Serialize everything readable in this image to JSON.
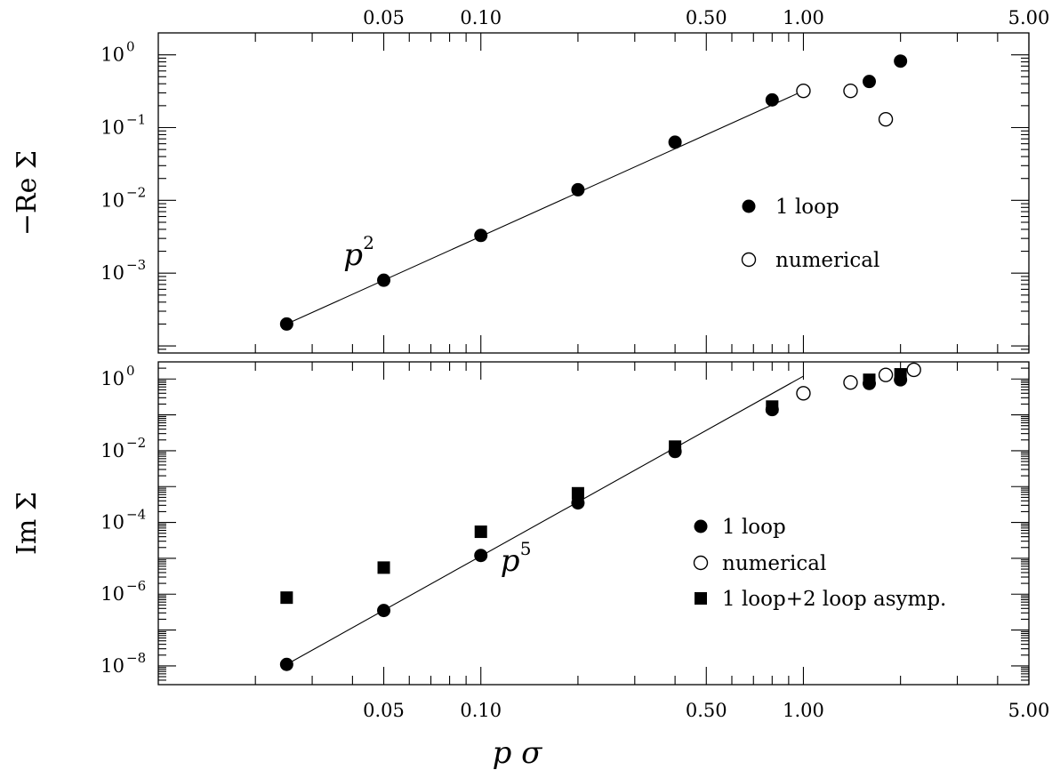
{
  "chart_data": [
    {
      "type": "scatter",
      "panel": "top",
      "xscale": "log",
      "yscale": "log",
      "xlim": [
        0.01,
        5.0
      ],
      "ylim": [
        8e-05,
        2.0
      ],
      "ylabel": "−Re Σ",
      "xlabel": "",
      "x_tick_labels": [
        "0.05",
        "0.10",
        "0.50",
        "1.00",
        "5.00"
      ],
      "y_ticks": [
        {
          "base": "10",
          "exp": "0",
          "value": 1
        },
        {
          "base": "10",
          "exp": "−1",
          "value": 0.1
        },
        {
          "base": "10",
          "exp": "−2",
          "value": 0.01
        },
        {
          "base": "10",
          "exp": "−3",
          "value": 0.001
        }
      ],
      "series": [
        {
          "name": "1 loop",
          "marker": "filled-circle",
          "x": [
            0.025,
            0.05,
            0.1,
            0.2,
            0.4,
            0.8,
            1.6,
            2.0
          ],
          "y": [
            0.0002,
            0.0008,
            0.0033,
            0.014,
            0.063,
            0.24,
            0.43,
            0.82
          ]
        },
        {
          "name": "numerical",
          "marker": "open-circle",
          "x": [
            1.0,
            1.4,
            1.8
          ],
          "y": [
            0.32,
            0.32,
            0.13
          ]
        }
      ],
      "fit_line": {
        "x": [
          0.025,
          1.0
        ],
        "y": [
          0.0002,
          0.32
        ]
      },
      "annotation": {
        "text": "p",
        "sup": "2",
        "x": 0.0375,
        "y": 0.0013
      },
      "legend_position": "middle-right"
    },
    {
      "type": "scatter",
      "panel": "bottom",
      "xscale": "log",
      "yscale": "log",
      "xlim": [
        0.01,
        5.0
      ],
      "ylim": [
        3e-09,
        3.0
      ],
      "ylabel": "Im Σ",
      "xlabel": "p σ",
      "x_tick_labels": [
        "0.05",
        "0.10",
        "0.50",
        "1.00",
        "5.00"
      ],
      "y_ticks": [
        {
          "base": "10",
          "exp": "0",
          "value": 1
        },
        {
          "base": "10",
          "exp": "−2",
          "value": 0.01
        },
        {
          "base": "10",
          "exp": "−4",
          "value": 0.0001
        },
        {
          "base": "10",
          "exp": "−6",
          "value": 1e-06
        },
        {
          "base": "10",
          "exp": "−8",
          "value": 1e-08
        }
      ],
      "series": [
        {
          "name": "1 loop",
          "marker": "filled-circle",
          "x": [
            0.025,
            0.05,
            0.1,
            0.2,
            0.4,
            0.8,
            1.6,
            2.0
          ],
          "y": [
            1.1e-08,
            3.5e-07,
            1.2e-05,
            0.00035,
            0.0095,
            0.14,
            0.75,
            0.95
          ]
        },
        {
          "name": "numerical",
          "marker": "open-circle",
          "x": [
            1.0,
            1.4,
            1.8,
            2.2
          ],
          "y": [
            0.4,
            0.8,
            1.3,
            1.8
          ]
        },
        {
          "name": "1 loop+2 loop asymp.",
          "marker": "filled-square",
          "x": [
            0.025,
            0.05,
            0.1,
            0.2,
            0.4,
            0.8,
            1.6,
            2.0
          ],
          "y": [
            8e-07,
            5.5e-06,
            5.5e-05,
            0.00065,
            0.013,
            0.17,
            0.95,
            1.35
          ]
        }
      ],
      "fit_line": {
        "x": [
          0.025,
          1.0
        ],
        "y": [
          1.1e-08,
          1.2
        ]
      },
      "annotation": {
        "text": "p",
        "sup": "5",
        "x": 0.115,
        "y": 4.5e-06
      },
      "legend_position": "lower-right"
    }
  ]
}
